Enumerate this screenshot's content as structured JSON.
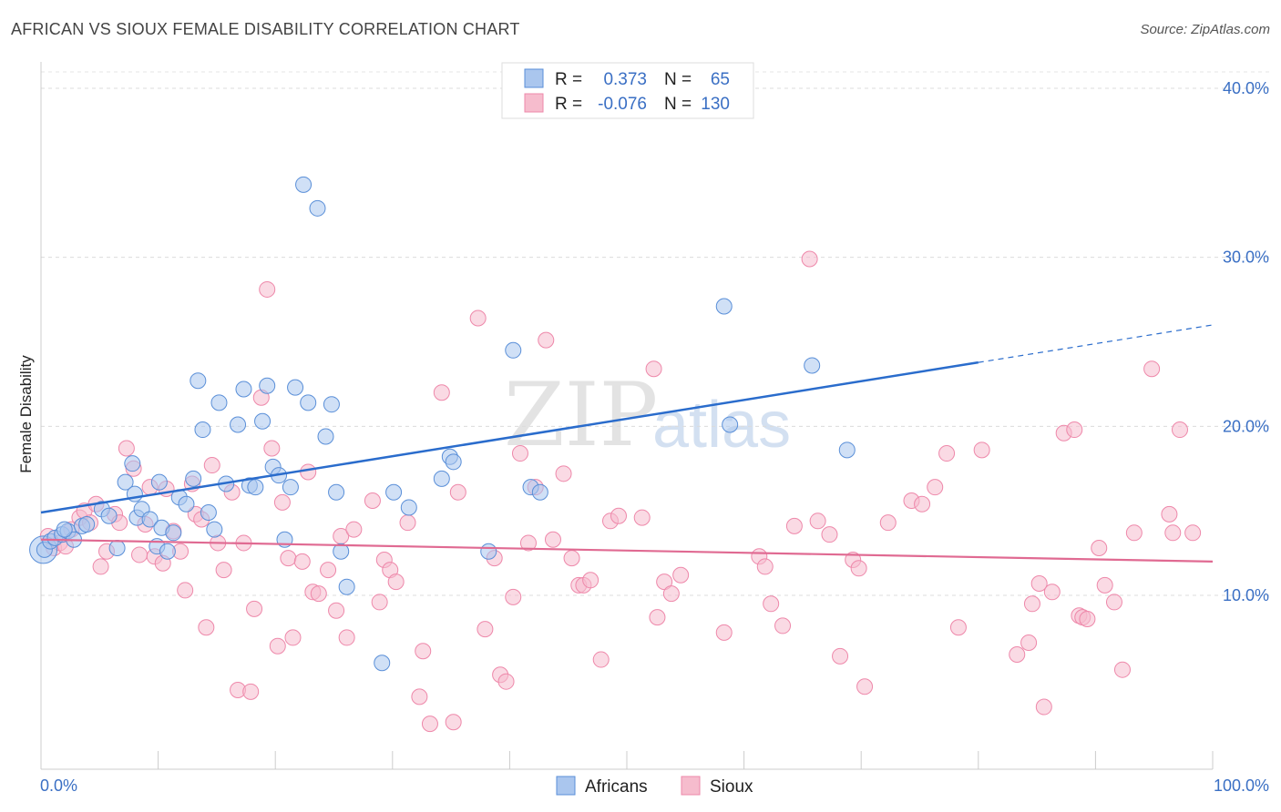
{
  "header": {
    "title": "AFRICAN VS SIOUX FEMALE DISABILITY CORRELATION CHART",
    "source": "Source: ZipAtlas.com"
  },
  "watermark": {
    "zip": "ZIP",
    "atlas": "atlas"
  },
  "colors": {
    "africans": "#5a8fd8",
    "africans_fill": "#aac6ee",
    "africans_line": "#2a6ccc",
    "sioux": "#ee88aa",
    "sioux_fill": "#f6bccd",
    "sioux_line": "#e06a92",
    "tick_label": "#3a6fc4"
  },
  "legend": {
    "rows": [
      {
        "r_label": "R =",
        "r_value": "0.373",
        "n_label": "N =",
        "n_value": "65"
      },
      {
        "r_label": "R =",
        "r_value": "-0.076",
        "n_label": "N =",
        "n_value": "130"
      }
    ]
  },
  "bottom_legend": [
    "Africans",
    "Sioux"
  ],
  "chart_data": {
    "type": "scatter",
    "title": "AFRICAN VS SIOUX FEMALE DISABILITY CORRELATION CHART",
    "xlabel": "",
    "ylabel": "Female Disability",
    "xlim": [
      0,
      100
    ],
    "ylim": [
      0,
      40
    ],
    "x_tick_labels": [
      "0.0%",
      "100.0%"
    ],
    "y_ticks": [
      10,
      20,
      30,
      40
    ],
    "y_tick_labels": [
      "10.0%",
      "20.0%",
      "30.0%",
      "40.0%"
    ],
    "grid": true,
    "series": [
      {
        "name": "Africans",
        "R": 0.373,
        "N": 65,
        "trend": {
          "x": [
            0,
            100
          ],
          "y": [
            14.9,
            26.0
          ],
          "solid_until_x": 80
        },
        "points": [
          [
            0.3,
            12.7
          ],
          [
            0.8,
            13.2
          ],
          [
            1.2,
            13.4
          ],
          [
            1.8,
            13.6
          ],
          [
            2.3,
            13.8
          ],
          [
            2.8,
            13.3
          ],
          [
            3.5,
            14.1
          ],
          [
            3.9,
            14.2
          ],
          [
            5.2,
            15.1
          ],
          [
            5.8,
            14.7
          ],
          [
            6.5,
            12.8
          ],
          [
            7.2,
            16.7
          ],
          [
            7.8,
            17.8
          ],
          [
            8.2,
            14.6
          ],
          [
            8.6,
            15.1
          ],
          [
            9.3,
            14.5
          ],
          [
            10.1,
            16.7
          ],
          [
            10.3,
            14.0
          ],
          [
            9.9,
            12.9
          ],
          [
            10.8,
            12.6
          ],
          [
            11.3,
            13.7
          ],
          [
            11.8,
            15.8
          ],
          [
            12.4,
            15.4
          ],
          [
            13.0,
            16.9
          ],
          [
            13.4,
            22.7
          ],
          [
            13.8,
            19.8
          ],
          [
            14.3,
            14.9
          ],
          [
            14.8,
            13.9
          ],
          [
            15.2,
            21.4
          ],
          [
            15.8,
            16.6
          ],
          [
            16.8,
            20.1
          ],
          [
            17.3,
            22.2
          ],
          [
            17.8,
            16.5
          ],
          [
            18.3,
            16.4
          ],
          [
            18.9,
            20.3
          ],
          [
            19.3,
            22.4
          ],
          [
            19.8,
            17.6
          ],
          [
            20.3,
            17.1
          ],
          [
            20.8,
            13.3
          ],
          [
            21.3,
            16.4
          ],
          [
            21.7,
            22.3
          ],
          [
            22.4,
            34.3
          ],
          [
            22.8,
            21.4
          ],
          [
            23.6,
            32.9
          ],
          [
            24.3,
            19.4
          ],
          [
            24.8,
            21.3
          ],
          [
            25.2,
            16.1
          ],
          [
            25.6,
            12.6
          ],
          [
            26.1,
            10.5
          ],
          [
            29.1,
            6.0
          ],
          [
            30.1,
            16.1
          ],
          [
            31.4,
            15.2
          ],
          [
            34.2,
            16.9
          ],
          [
            34.9,
            18.2
          ],
          [
            35.2,
            17.9
          ],
          [
            38.2,
            12.6
          ],
          [
            40.3,
            24.5
          ],
          [
            41.8,
            16.4
          ],
          [
            42.6,
            16.1
          ],
          [
            58.3,
            27.1
          ],
          [
            58.8,
            20.1
          ],
          [
            65.8,
            23.6
          ],
          [
            68.8,
            18.6
          ],
          [
            2.0,
            13.9
          ],
          [
            8.0,
            16.0
          ]
        ]
      },
      {
        "name": "Sioux",
        "R": -0.076,
        "N": 130,
        "trend": {
          "x": [
            0,
            100
          ],
          "y": [
            13.3,
            12.0
          ]
        },
        "points": [
          [
            0.6,
            13.5
          ],
          [
            1.1,
            12.8
          ],
          [
            1.6,
            13.1
          ],
          [
            2.1,
            12.9
          ],
          [
            2.6,
            13.9
          ],
          [
            3.3,
            14.6
          ],
          [
            3.7,
            15.0
          ],
          [
            4.2,
            14.3
          ],
          [
            4.7,
            15.4
          ],
          [
            5.1,
            11.7
          ],
          [
            5.6,
            12.6
          ],
          [
            6.3,
            14.8
          ],
          [
            6.7,
            14.3
          ],
          [
            7.3,
            18.7
          ],
          [
            7.9,
            17.5
          ],
          [
            8.4,
            12.4
          ],
          [
            8.9,
            14.2
          ],
          [
            9.3,
            16.4
          ],
          [
            9.7,
            12.3
          ],
          [
            10.4,
            11.9
          ],
          [
            10.7,
            16.3
          ],
          [
            11.3,
            13.8
          ],
          [
            11.9,
            12.6
          ],
          [
            12.3,
            10.3
          ],
          [
            12.9,
            16.6
          ],
          [
            13.2,
            14.8
          ],
          [
            13.7,
            14.5
          ],
          [
            14.1,
            8.1
          ],
          [
            14.6,
            17.7
          ],
          [
            15.1,
            13.1
          ],
          [
            15.6,
            11.5
          ],
          [
            16.3,
            16.1
          ],
          [
            16.8,
            4.4
          ],
          [
            17.3,
            13.1
          ],
          [
            17.9,
            4.3
          ],
          [
            18.2,
            9.2
          ],
          [
            18.8,
            21.7
          ],
          [
            19.3,
            28.1
          ],
          [
            19.7,
            18.7
          ],
          [
            20.2,
            7.0
          ],
          [
            20.6,
            15.5
          ],
          [
            21.1,
            12.2
          ],
          [
            21.5,
            7.5
          ],
          [
            22.3,
            12.0
          ],
          [
            22.8,
            17.3
          ],
          [
            23.2,
            10.2
          ],
          [
            23.7,
            10.1
          ],
          [
            24.5,
            11.5
          ],
          [
            25.2,
            9.1
          ],
          [
            25.6,
            13.5
          ],
          [
            26.1,
            7.5
          ],
          [
            26.7,
            13.9
          ],
          [
            28.3,
            15.6
          ],
          [
            28.9,
            9.6
          ],
          [
            29.3,
            12.1
          ],
          [
            29.8,
            11.5
          ],
          [
            30.3,
            10.8
          ],
          [
            31.3,
            14.3
          ],
          [
            32.3,
            4.0
          ],
          [
            32.6,
            6.7
          ],
          [
            33.2,
            2.4
          ],
          [
            34.2,
            22.0
          ],
          [
            35.2,
            2.5
          ],
          [
            35.6,
            16.1
          ],
          [
            37.3,
            26.4
          ],
          [
            37.9,
            8.0
          ],
          [
            38.7,
            12.2
          ],
          [
            39.2,
            5.3
          ],
          [
            39.7,
            4.9
          ],
          [
            40.3,
            9.9
          ],
          [
            40.9,
            18.4
          ],
          [
            41.6,
            13.1
          ],
          [
            42.2,
            16.4
          ],
          [
            43.1,
            25.1
          ],
          [
            43.7,
            13.3
          ],
          [
            44.6,
            17.2
          ],
          [
            45.3,
            12.2
          ],
          [
            45.9,
            10.6
          ],
          [
            46.3,
            10.6
          ],
          [
            46.9,
            10.9
          ],
          [
            47.8,
            6.2
          ],
          [
            48.6,
            14.4
          ],
          [
            49.3,
            14.7
          ],
          [
            51.3,
            14.6
          ],
          [
            52.3,
            23.4
          ],
          [
            52.6,
            8.7
          ],
          [
            53.2,
            10.8
          ],
          [
            53.8,
            10.1
          ],
          [
            54.6,
            11.2
          ],
          [
            58.3,
            7.8
          ],
          [
            61.3,
            12.3
          ],
          [
            61.8,
            11.7
          ],
          [
            62.3,
            9.5
          ],
          [
            63.3,
            8.2
          ],
          [
            64.3,
            14.1
          ],
          [
            65.6,
            29.9
          ],
          [
            66.3,
            14.4
          ],
          [
            67.3,
            13.6
          ],
          [
            68.2,
            6.4
          ],
          [
            69.3,
            12.1
          ],
          [
            69.8,
            11.6
          ],
          [
            70.3,
            4.6
          ],
          [
            72.3,
            14.3
          ],
          [
            74.3,
            15.6
          ],
          [
            75.2,
            15.4
          ],
          [
            76.3,
            16.4
          ],
          [
            77.3,
            18.4
          ],
          [
            78.3,
            8.1
          ],
          [
            80.3,
            18.6
          ],
          [
            83.3,
            6.5
          ],
          [
            84.3,
            7.2
          ],
          [
            84.6,
            9.5
          ],
          [
            85.2,
            10.7
          ],
          [
            85.6,
            3.4
          ],
          [
            86.3,
            10.2
          ],
          [
            87.3,
            19.6
          ],
          [
            88.2,
            19.8
          ],
          [
            88.6,
            8.8
          ],
          [
            88.9,
            8.7
          ],
          [
            89.3,
            8.6
          ],
          [
            90.3,
            12.8
          ],
          [
            90.8,
            10.6
          ],
          [
            91.6,
            9.6
          ],
          [
            92.3,
            5.6
          ],
          [
            93.3,
            13.7
          ],
          [
            94.8,
            23.4
          ],
          [
            96.3,
            14.8
          ],
          [
            96.6,
            13.7
          ],
          [
            97.2,
            19.8
          ],
          [
            98.3,
            13.7
          ]
        ]
      }
    ]
  }
}
